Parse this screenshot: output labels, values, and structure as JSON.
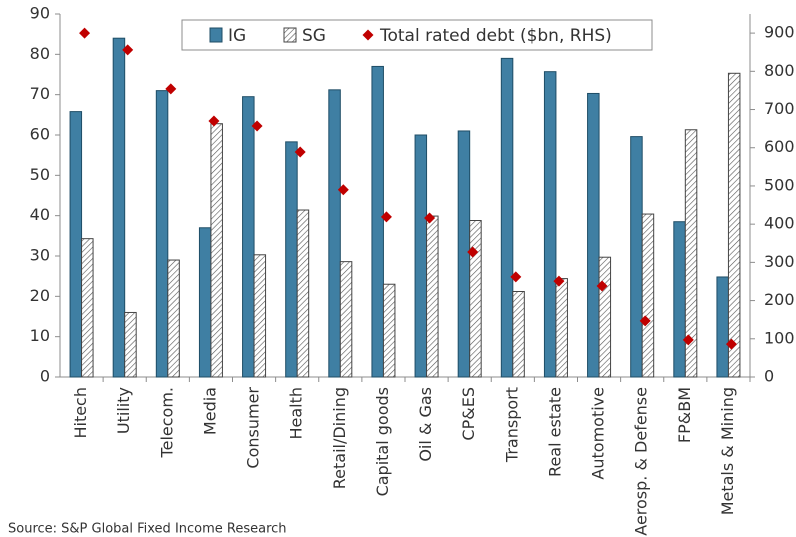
{
  "chart_data": {
    "type": "bar",
    "categories": [
      "Hitech",
      "Utility",
      "Telecom.",
      "Media",
      "Consumer",
      "Health",
      "Retail/Dining",
      "Capital goods",
      "Oil & Gas",
      "CP&ES",
      "Transport",
      "Real estate",
      "Automotive",
      "Aerosp. & Defense",
      "FP&BM",
      "Metals & Mining"
    ],
    "series": [
      {
        "name": "IG",
        "color": "#3f7fa3",
        "values": [
          65.8,
          84,
          71,
          37,
          69.5,
          58.3,
          71.2,
          77,
          60,
          61,
          79,
          75.7,
          70.3,
          59.6,
          38.5,
          24.8
        ]
      },
      {
        "name": "SG",
        "color": "#555555",
        "hatch": true,
        "values": [
          34.3,
          16,
          29,
          62.8,
          30.3,
          41.4,
          28.6,
          23,
          39.9,
          38.8,
          21.2,
          24.4,
          29.7,
          40.4,
          61.3,
          75.3
        ]
      },
      {
        "name": "Total rated debt ($bn, RHS)",
        "color": "#c00000",
        "marker": "diamond",
        "axis": "y2",
        "values": [
          900,
          856,
          754,
          670,
          657,
          589,
          490,
          419,
          416,
          327,
          262,
          251,
          238,
          147,
          97,
          86
        ]
      }
    ],
    "ylim": [
      0,
      90
    ],
    "yticks": [
      0,
      10,
      20,
      30,
      40,
      50,
      60,
      70,
      80,
      90
    ],
    "y2lim": [
      0,
      950
    ],
    "y2ticks": [
      0,
      100,
      200,
      300,
      400,
      500,
      600,
      700,
      800,
      900
    ],
    "legend": "top",
    "source": "Source: S&P Global Fixed Income Research"
  }
}
